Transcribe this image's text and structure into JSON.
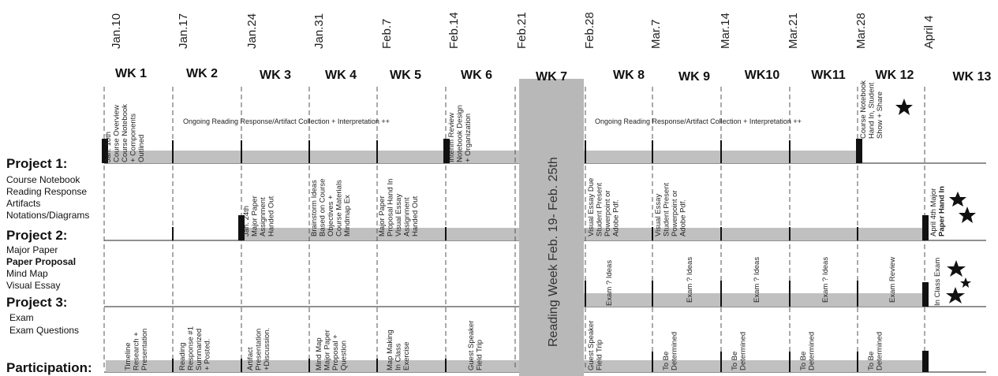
{
  "dates": [
    "Jan.10",
    "Jan.17",
    "Jan.24",
    "Jan.31",
    "Feb.7",
    "Feb.14",
    "Feb.21",
    "Feb.28",
    "Mar.7",
    "Mar.14",
    "Mar.21",
    "Mar.28",
    "April 4"
  ],
  "weeks": [
    "WK 1",
    "WK 2",
    "WK 3",
    "WK 4",
    "WK 5",
    "WK 6",
    "WK 7",
    "WK 8",
    "WK 9",
    "WK10",
    "WK11",
    "WK 12",
    "WK 13"
  ],
  "reading_week": "Reading Week  Feb. 19- Feb. 25th",
  "ongoing": {
    "first": "Ongoing Reading Response/Artifact Collection + Interpretation ++",
    "second": "Ongoing Reading Response/Artifact Collection + Interpretation ++"
  },
  "projects": {
    "p1": {
      "title": "Project 1:",
      "items": [
        "Course Notebook",
        "Reading Response",
        "Artifacts",
        "Notations/Diagrams"
      ]
    },
    "p2": {
      "title": "Project 2:",
      "items": [
        "Major Paper",
        "Paper Proposal",
        "Mind Map",
        "Visual Essay"
      ]
    },
    "p3": {
      "title": "Project 3:",
      "items": [
        "Exam",
        "Exam Questions"
      ]
    },
    "participation": {
      "title": "Participation:"
    }
  },
  "cells": {
    "r1_w1": [
      "Jan. 10th",
      "Course Overview",
      "Course Notebook",
      "+ Components",
      "Outlined"
    ],
    "r1_w6": [
      "Interim Review",
      "Notebook Design",
      "+ Organization"
    ],
    "r1_w12": [
      "Course Notebook",
      "Hand In, Student",
      "Show + Share"
    ],
    "r2_w3": [
      "Jan. 24th",
      "Major Paper",
      "Assignment",
      "Handed Out"
    ],
    "r2_w4": [
      "Brainstorm Ideas",
      "Based on Course",
      "Objectives +",
      "Course Materials",
      "Mindmap Ex"
    ],
    "r2_w5": [
      "Major Paper",
      "Proposal Hand In",
      "Visual Essay",
      "Assignment",
      "Handed Out"
    ],
    "r2_w8": [
      "Visual Essay Due",
      "Student Present",
      "Powerpoint or",
      "Adobe Pdf."
    ],
    "r2_w9": [
      "Visual Essay",
      "Student Present",
      "Powerpoint or",
      "Adobe Pdf."
    ],
    "r2_w13": [
      "April 4th Major",
      "Paper Hand In"
    ],
    "r3_w8": [
      "Exam ? Ideas"
    ],
    "r3_w9": [
      "Exam ? Ideas"
    ],
    "r3_w10": [
      "Exam ? Ideas"
    ],
    "r3_w11": [
      "Exam ? Ideas"
    ],
    "r3_w12": [
      "Exam Review"
    ],
    "r3_w13": [
      "In Class Exam"
    ],
    "r4_w1": [
      "Timeline",
      "Research +",
      "Presentation"
    ],
    "r4_w2": [
      "Reading",
      "Response #1",
      "Summarized",
      "+ Posted."
    ],
    "r4_w3": [
      "Artifact",
      "Presentation",
      "+Discussion."
    ],
    "r4_w4": [
      "Mind Map",
      "Major Paper",
      "Proposal +",
      "Question"
    ],
    "r4_w5": [
      "Map Making",
      "In Class",
      "Exercise"
    ],
    "r4_w6": [
      "Guest Speaker",
      "Field Trip"
    ],
    "r4_w8": [
      "Guest Speaker",
      "Field Trip"
    ],
    "r4_w9": [
      "To Be",
      "Determined"
    ],
    "r4_w10": [
      "To Be",
      "Determined"
    ],
    "r4_w11": [
      "To Be",
      "Determined"
    ],
    "r4_w12": [
      "To Be",
      "Determined"
    ]
  }
}
